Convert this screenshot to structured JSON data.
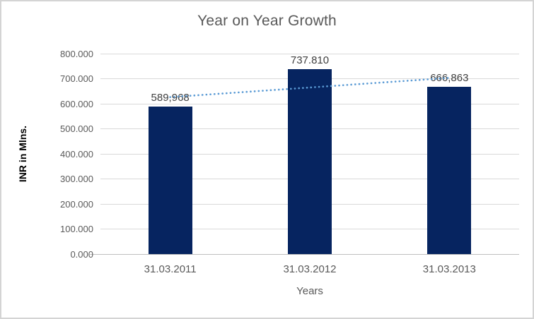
{
  "window": {
    "background": "#FFFFFF",
    "border_color": "#D4D4D4"
  },
  "chart_data": {
    "type": "bar",
    "title": "Year on Year Growth",
    "xlabel": "Years",
    "ylabel": "INR in Mlns.",
    "categories": [
      "31.03.2011",
      "31.03.2012",
      "31.03.2013"
    ],
    "series": [
      {
        "name": "INR in Mlns.",
        "values": [
          589968,
          737810,
          666863
        ],
        "labels": [
          "589,968",
          "737.810",
          "666,863"
        ],
        "color": "#062460"
      }
    ],
    "trendline": {
      "type": "linear",
      "style": "dotted",
      "color": "#5B9BD5",
      "endpoint_values": [
        626433,
        703328
      ]
    },
    "ylim": [
      0,
      800000
    ],
    "y_ticks": [
      {
        "value": 0,
        "label": "0.000"
      },
      {
        "value": 100000,
        "label": "100.000"
      },
      {
        "value": 200000,
        "label": "200.000"
      },
      {
        "value": 300000,
        "label": "300.000"
      },
      {
        "value": 400000,
        "label": "400.000"
      },
      {
        "value": 500000,
        "label": "500.000"
      },
      {
        "value": 600000,
        "label": "600.000"
      },
      {
        "value": 700000,
        "label": "700.000"
      },
      {
        "value": 800000,
        "label": "800.000"
      }
    ],
    "grid": "horizontal",
    "legend": "none",
    "colors": {
      "grid": "#D9D9D9",
      "axis": "#BFBFBF",
      "title_text": "#595959",
      "tick_text": "#595959",
      "data_label_text": "#404040"
    }
  }
}
